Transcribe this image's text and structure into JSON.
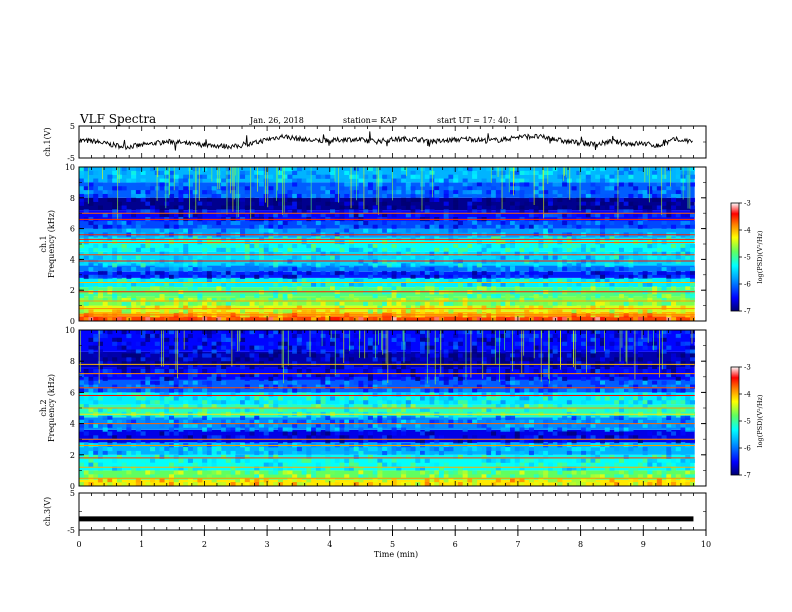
{
  "header": {
    "title": "VLF Spectra",
    "date": "Jan. 26, 2018",
    "station": "station= KAP",
    "start_time": "start  UT =   17: 40: 1"
  },
  "chart_data": [
    {
      "type": "line",
      "panel": "ch1-waveform",
      "ylabel": "ch.1(V)",
      "ylim": [
        -5,
        5
      ],
      "yticks": [
        "5",
        "-5"
      ],
      "xlim": [
        0,
        10
      ],
      "x": [
        0,
        0.25,
        0.5,
        0.75,
        1.0,
        1.25,
        1.5,
        1.75,
        2.0,
        2.25,
        2.5,
        2.75,
        3.0,
        3.25,
        3.5,
        3.75,
        4.0,
        4.25,
        4.5,
        4.75,
        5.0,
        5.25,
        5.5,
        5.75,
        6.0,
        6.25,
        6.5,
        6.75,
        7.0,
        7.25,
        7.5,
        7.75,
        8.0,
        8.25,
        8.5,
        8.75,
        9.0,
        9.25,
        9.5,
        9.8
      ],
      "values": [
        0.5,
        0.2,
        -0.8,
        -1.5,
        -1.0,
        -0.3,
        0.2,
        -0.6,
        -0.9,
        -1.2,
        -1.4,
        -0.6,
        0.8,
        1.8,
        1.0,
        0.4,
        0.3,
        0.9,
        0.6,
        0.2,
        0.8,
        1.0,
        0.6,
        0.2,
        0.7,
        1.0,
        0.4,
        0.7,
        1.6,
        1.8,
        1.2,
        0.2,
        -0.2,
        -0.8,
        0.2,
        -0.5,
        -0.5,
        -1.2,
        0.8,
        0.2
      ]
    },
    {
      "type": "heatmap",
      "panel": "ch1-spectrogram",
      "ylabel": "ch.1 Frequency (kHz)",
      "ylim": [
        0,
        10
      ],
      "yticks": [
        "0",
        "2",
        "4",
        "6",
        "8",
        "10"
      ],
      "xlim": [
        0,
        10
      ],
      "colorbar": {
        "label": "log(PSD)(V²/Hz)",
        "range": [
          -7,
          -3
        ],
        "ticks": [
          "-3",
          "-4",
          "-5",
          "-6",
          "-7"
        ]
      },
      "bands": [
        {
          "f0": 0.0,
          "f1": 0.3,
          "level": -3.6
        },
        {
          "f0": 0.3,
          "f1": 0.6,
          "level": -4.0
        },
        {
          "f0": 0.6,
          "f1": 1.0,
          "level": -4.4
        },
        {
          "f0": 1.0,
          "f1": 1.6,
          "level": -4.7
        },
        {
          "f0": 1.6,
          "f1": 2.2,
          "level": -4.9
        },
        {
          "f0": 2.2,
          "f1": 2.8,
          "level": -5.4
        },
        {
          "f0": 2.8,
          "f1": 3.2,
          "level": -6.4
        },
        {
          "f0": 3.2,
          "f1": 3.6,
          "level": -6.0
        },
        {
          "f0": 3.6,
          "f1": 4.5,
          "level": -5.5
        },
        {
          "f0": 4.5,
          "f1": 5.4,
          "level": -5.3
        },
        {
          "f0": 5.4,
          "f1": 6.0,
          "level": -5.8
        },
        {
          "f0": 6.0,
          "f1": 6.5,
          "level": -6.2
        },
        {
          "f0": 6.5,
          "f1": 7.2,
          "level": -6.5
        },
        {
          "f0": 7.2,
          "f1": 8.0,
          "level": -6.9
        },
        {
          "f0": 8.0,
          "f1": 9.0,
          "level": -6.1
        },
        {
          "f0": 9.0,
          "f1": 10.0,
          "level": -5.7
        }
      ],
      "lines_khz": [
        0.4,
        0.8,
        1.3,
        1.9,
        2.5,
        3.9,
        4.3,
        5.1,
        5.3,
        5.6,
        6.6,
        7.0
      ]
    },
    {
      "type": "heatmap",
      "panel": "ch2-spectrogram",
      "ylabel": "ch.2 Frequency (kHz)",
      "ylim": [
        0,
        10
      ],
      "yticks": [
        "0",
        "2",
        "4",
        "6",
        "8",
        "10"
      ],
      "xlim": [
        0,
        10
      ],
      "colorbar": {
        "label": "log(PSD)(V²/Hz)",
        "range": [
          -7,
          -3
        ],
        "ticks": [
          "-3",
          "-4",
          "-5",
          "-6",
          "-7"
        ]
      },
      "bands": [
        {
          "f0": 0.0,
          "f1": 0.4,
          "level": -4.2
        },
        {
          "f0": 0.4,
          "f1": 1.0,
          "level": -4.8
        },
        {
          "f0": 1.0,
          "f1": 2.0,
          "level": -5.3
        },
        {
          "f0": 2.0,
          "f1": 2.8,
          "level": -5.7
        },
        {
          "f0": 2.8,
          "f1": 3.6,
          "level": -6.6
        },
        {
          "f0": 3.6,
          "f1": 4.4,
          "level": -5.9
        },
        {
          "f0": 4.4,
          "f1": 5.2,
          "level": -5.1
        },
        {
          "f0": 5.2,
          "f1": 6.0,
          "level": -5.4
        },
        {
          "f0": 6.0,
          "f1": 6.8,
          "level": -6.1
        },
        {
          "f0": 6.8,
          "f1": 7.6,
          "level": -6.5
        },
        {
          "f0": 7.6,
          "f1": 8.6,
          "level": -6.8
        },
        {
          "f0": 8.6,
          "f1": 10.0,
          "level": -6.5
        }
      ],
      "lines_khz": [
        0.5,
        1.2,
        1.8,
        2.6,
        3.0,
        4.0,
        4.6,
        5.0,
        5.8,
        6.3,
        7.2,
        7.8
      ]
    },
    {
      "type": "line",
      "panel": "ch3-waveform",
      "ylabel": "ch.3(V)",
      "ylim": [
        -5,
        5
      ],
      "yticks": [
        "5",
        "-5"
      ],
      "xlim": [
        0,
        10
      ],
      "x": [
        0,
        9.8
      ],
      "values": [
        -2.0,
        -2.0
      ]
    }
  ],
  "xaxis": {
    "label": "Time  (min)",
    "ticks": [
      "0",
      "1",
      "2",
      "3",
      "4",
      "5",
      "6",
      "7",
      "8",
      "9",
      "10"
    ]
  },
  "colors": {
    "axis": "#000000",
    "trace": "#000000",
    "colormap": [
      "#000070",
      "#0000ff",
      "#00a0ff",
      "#00ffff",
      "#60ff60",
      "#ffff00",
      "#ff8000",
      "#ff0000",
      "#ffffff"
    ]
  }
}
